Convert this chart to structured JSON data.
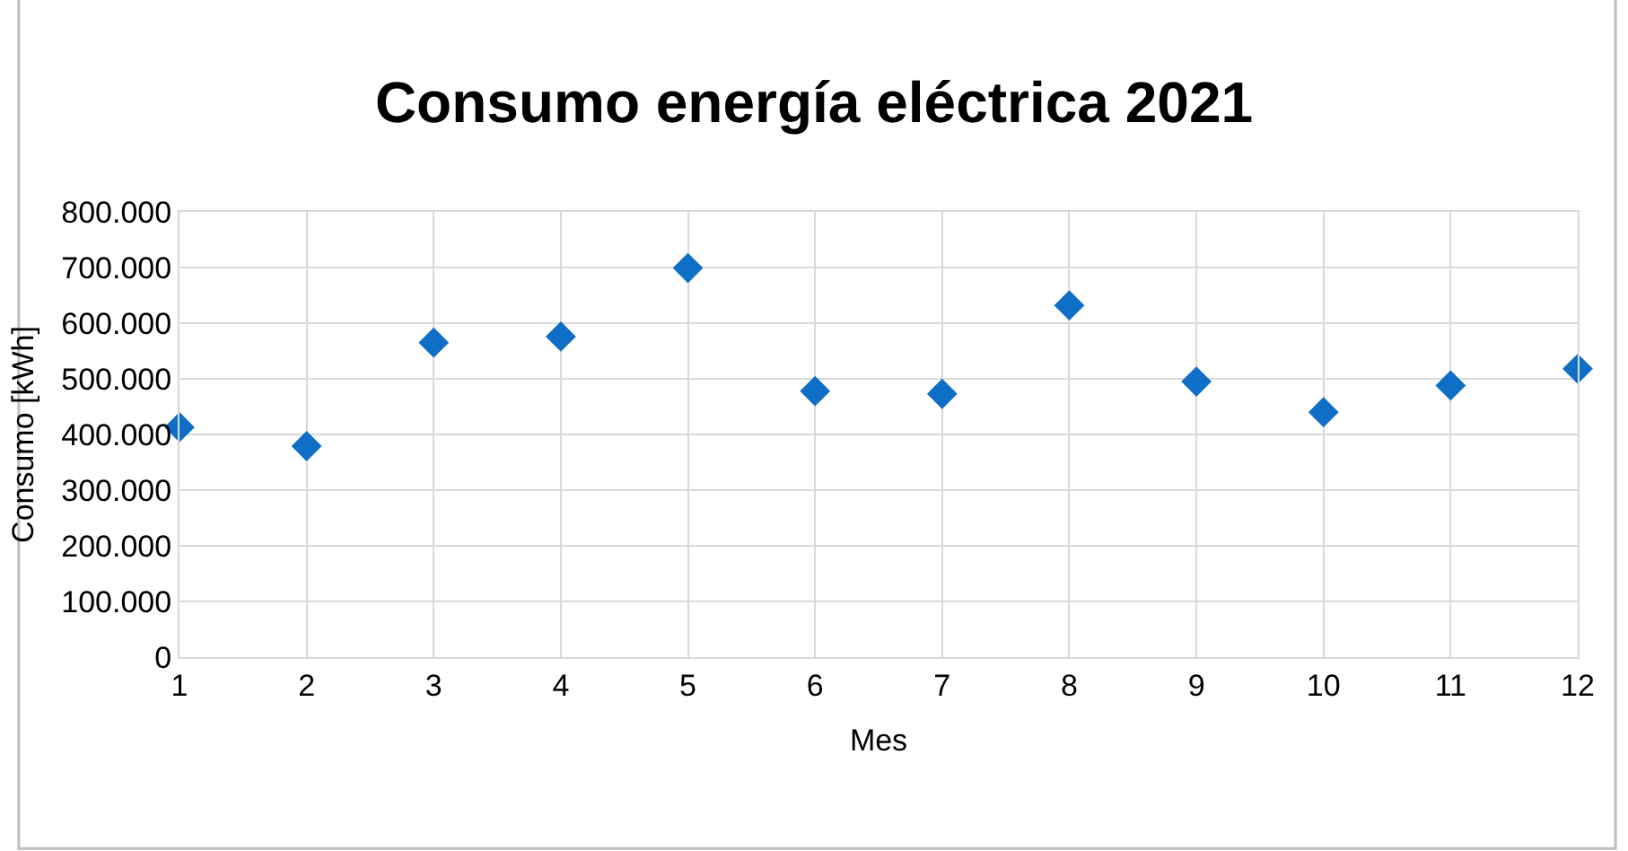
{
  "chart_data": {
    "type": "scatter",
    "title": "Consumo energía eléctrica 2021",
    "xlabel": "Mes",
    "ylabel": "Consumo [kWh]",
    "x": [
      1,
      2,
      3,
      4,
      5,
      6,
      7,
      8,
      9,
      10,
      11,
      12
    ],
    "series": [
      {
        "color": "#0f6fc6",
        "values": [
          413000,
          379000,
          565000,
          576000,
          699000,
          478000,
          473000,
          632000,
          495000,
          440000,
          488000,
          518000
        ]
      }
    ],
    "xlim": [
      1,
      12
    ],
    "xticks": [
      1,
      2,
      3,
      4,
      5,
      6,
      7,
      8,
      9,
      10,
      11,
      12
    ],
    "ylim": [
      0,
      800000
    ],
    "yticks": [
      {
        "value": 0,
        "label": "0"
      },
      {
        "value": 100000,
        "label": "100.000"
      },
      {
        "value": 200000,
        "label": "200.000"
      },
      {
        "value": 300000,
        "label": "300.000"
      },
      {
        "value": 400000,
        "label": "400.000"
      },
      {
        "value": 500000,
        "label": "500.000"
      },
      {
        "value": 600000,
        "label": "600.000"
      },
      {
        "value": 700000,
        "label": "700.000"
      },
      {
        "value": 800000,
        "label": "800.000"
      }
    ],
    "grid": true,
    "marker": "diamond"
  }
}
